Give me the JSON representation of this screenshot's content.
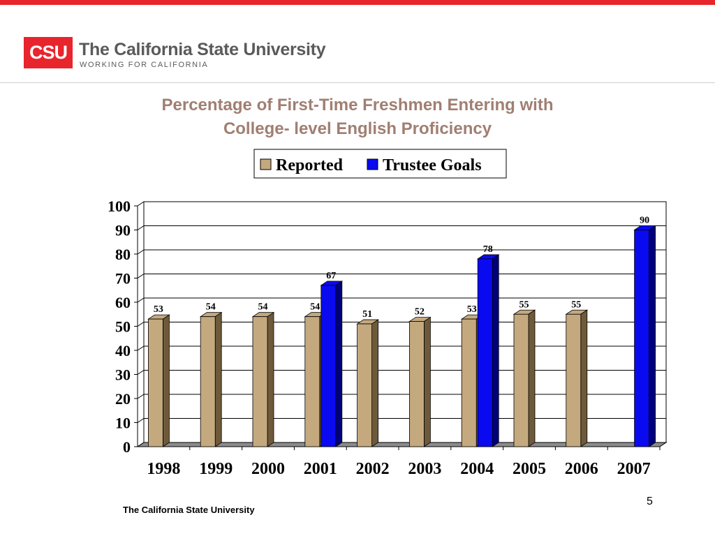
{
  "header": {
    "logo_text": "CSU",
    "university_name": "The California State University",
    "tagline": "WORKING FOR CALIFORNIA"
  },
  "title": {
    "line1": "Percentage of First-Time Freshmen Entering with",
    "line2": "College- level English Proficiency"
  },
  "colors": {
    "brand_red": "#e8242c",
    "title": "#a07f72",
    "reported": "#c4a97f",
    "reported_side": "#6e5a3a",
    "goal": "#0a0af0",
    "goal_side": "#00007a"
  },
  "chart_data": {
    "type": "bar",
    "title": "Percentage of First-Time Freshmen Entering with College- level English Proficiency",
    "categories": [
      "1998",
      "1999",
      "2000",
      "2001",
      "2002",
      "2003",
      "2004",
      "2005",
      "2006",
      "2007"
    ],
    "series": [
      {
        "name": "Reported",
        "values": [
          53,
          54,
          54,
          54,
          51,
          52,
          53,
          55,
          55,
          null
        ]
      },
      {
        "name": "Trustee Goals",
        "values": [
          null,
          null,
          null,
          67,
          null,
          null,
          78,
          null,
          null,
          90
        ]
      }
    ],
    "value_labels": {
      "Reported": [
        "53",
        "54",
        "54",
        "54",
        "51",
        "52",
        "53",
        "55",
        "55",
        ""
      ],
      "Trustee Goals": [
        "",
        "",
        "",
        "67",
        "",
        "",
        "78",
        "",
        "",
        "90"
      ]
    },
    "y_ticks": [
      "0",
      "10",
      "20",
      "30",
      "40",
      "50",
      "60",
      "70",
      "80",
      "90",
      "100"
    ],
    "ylim": [
      0,
      100
    ],
    "grid": true,
    "legend": "top-center"
  },
  "footer": {
    "text": "The California State University",
    "page_number": "5"
  }
}
